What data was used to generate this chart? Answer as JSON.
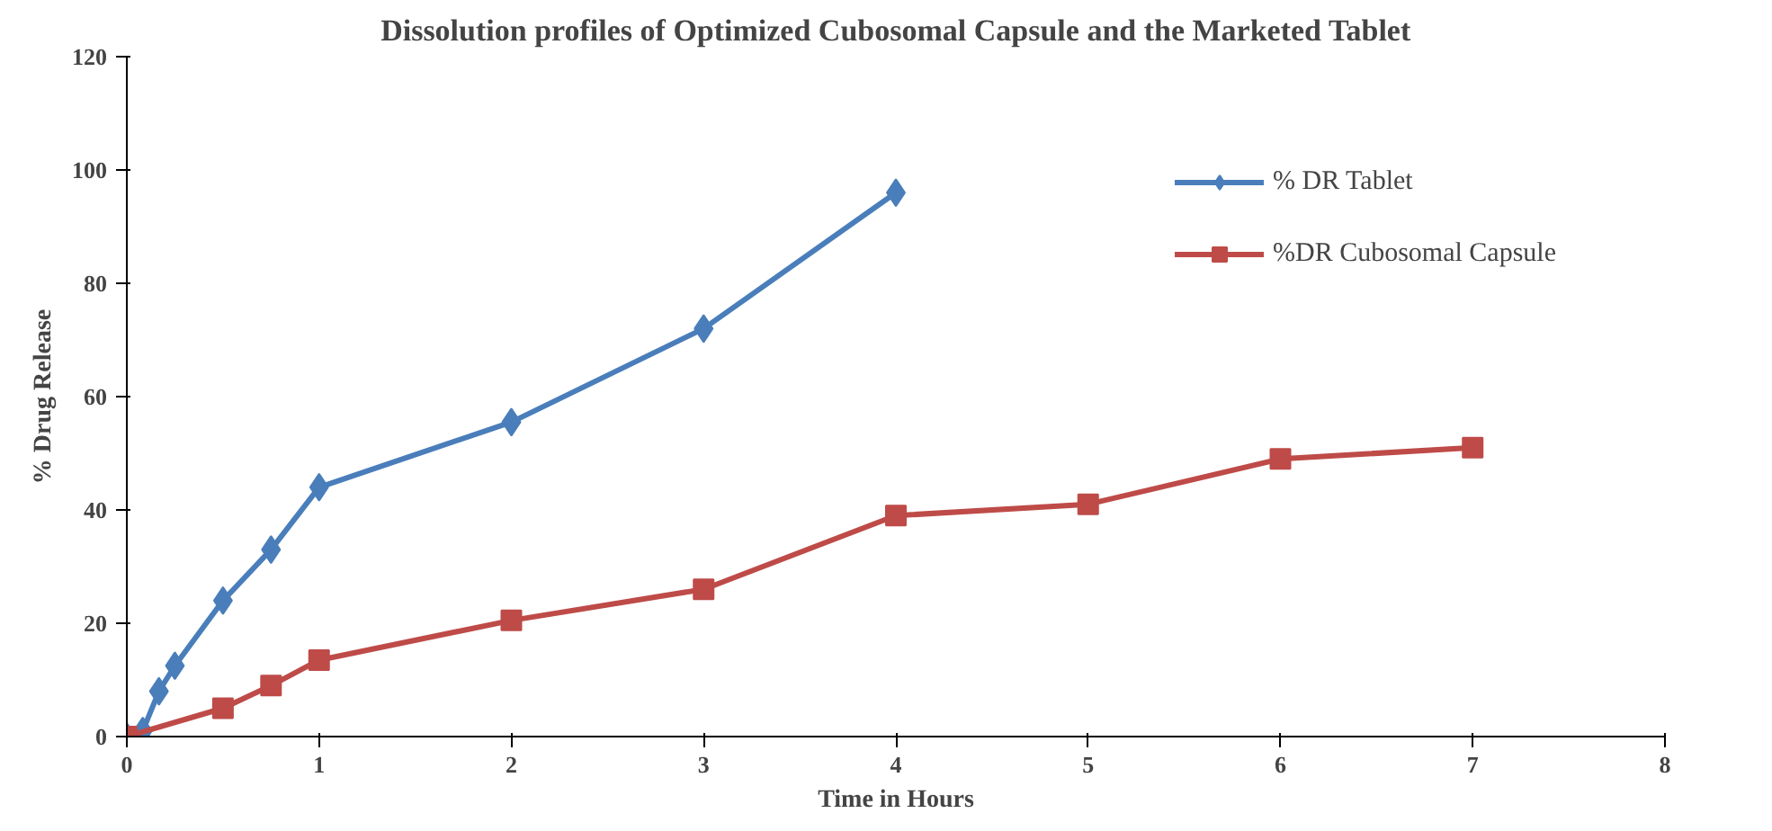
{
  "chart_data": {
    "type": "line",
    "title": "Dissolution profiles of Optimized Cubosomal Capsule and the Marketed Tablet",
    "xlabel": "Time in Hours",
    "ylabel": "% Drug Release",
    "xlim": [
      0,
      8
    ],
    "xticks": [
      0,
      1,
      2,
      3,
      4,
      5,
      6,
      7,
      8
    ],
    "ylim": [
      0,
      120
    ],
    "yticks": [
      0,
      20,
      40,
      60,
      80,
      100,
      120
    ],
    "grid": false,
    "legend": "top right",
    "line_style": "solid",
    "series": [
      {
        "name": "% DR Tablet",
        "color": "#4a7ebb",
        "marker": "diamond",
        "x": [
          0,
          0.083,
          0.167,
          0.25,
          0.5,
          0.75,
          1,
          2,
          3,
          4
        ],
        "values": [
          0,
          1,
          8,
          12.5,
          24,
          33,
          44,
          55.5,
          72,
          96
        ]
      },
      {
        "name": "%DR Cubosomal Capsule",
        "color": "#be4b48",
        "marker": "square",
        "x": [
          0,
          0.5,
          0.75,
          1,
          2,
          3,
          4,
          5,
          6,
          7
        ],
        "values": [
          0,
          5,
          9,
          13.5,
          20.5,
          26,
          39,
          41,
          49,
          51
        ]
      }
    ]
  }
}
